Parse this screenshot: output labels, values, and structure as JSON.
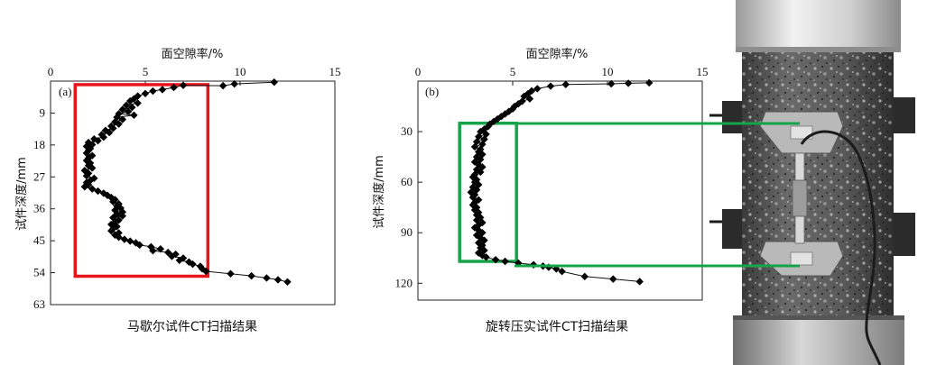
{
  "chart_data": [
    {
      "type": "line",
      "panel_label": "(a)",
      "xlabel": "面空隙率/%",
      "ylabel": "试件深度/mm",
      "xlim": [
        0,
        15
      ],
      "ylim": [
        63,
        0
      ],
      "x_ticks": [
        0,
        5,
        10,
        15
      ],
      "y_ticks": [
        9,
        18,
        27,
        36,
        45,
        54,
        63
      ],
      "x_axis_position": "top",
      "caption": "马歇尔试件CT扫描结果",
      "highlight": {
        "color": "#e8141b",
        "x_range": [
          1.3,
          8.3
        ],
        "y_range": [
          1.0,
          55.0
        ]
      },
      "series": [
        {
          "points": [
            [
              11.8,
              0.3
            ],
            [
              9.7,
              0.8
            ],
            [
              9.1,
              1.3
            ],
            [
              7.0,
              1.2
            ],
            [
              6.5,
              1.8
            ],
            [
              5.9,
              2.4
            ],
            [
              5.4,
              2.8
            ],
            [
              5.0,
              3.5
            ],
            [
              4.6,
              4.2
            ],
            [
              4.4,
              5.0
            ],
            [
              4.2,
              5.6
            ],
            [
              4.6,
              6.2
            ],
            [
              4.0,
              6.8
            ],
            [
              4.3,
              7.4
            ],
            [
              3.8,
              8.0
            ],
            [
              4.1,
              8.6
            ],
            [
              3.6,
              9.2
            ],
            [
              4.4,
              9.6
            ],
            [
              3.5,
              10.2
            ],
            [
              3.8,
              10.8
            ],
            [
              3.4,
              11.5
            ],
            [
              3.6,
              12.1
            ],
            [
              3.2,
              12.7
            ],
            [
              3.3,
              13.3
            ],
            [
              2.9,
              13.9
            ],
            [
              3.1,
              14.5
            ],
            [
              2.7,
              15.1
            ],
            [
              2.8,
              15.8
            ],
            [
              2.3,
              16.3
            ],
            [
              2.5,
              16.8
            ],
            [
              2.0,
              17.3
            ],
            [
              2.2,
              17.9
            ],
            [
              1.9,
              18.4
            ],
            [
              2.1,
              19.0
            ],
            [
              2.0,
              19.6
            ],
            [
              1.9,
              20.3
            ],
            [
              2.2,
              21.0
            ],
            [
              2.0,
              21.7
            ],
            [
              1.9,
              22.4
            ],
            [
              2.1,
              23.1
            ],
            [
              2.0,
              23.8
            ],
            [
              2.2,
              24.5
            ],
            [
              1.8,
              25.2
            ],
            [
              2.0,
              26.0
            ],
            [
              1.9,
              26.7
            ],
            [
              2.3,
              27.4
            ],
            [
              2.1,
              28.0
            ],
            [
              1.9,
              28.6
            ],
            [
              2.0,
              29.2
            ],
            [
              1.8,
              29.8
            ],
            [
              2.2,
              30.4
            ],
            [
              2.5,
              31.0
            ],
            [
              2.8,
              31.6
            ],
            [
              3.0,
              32.2
            ],
            [
              3.2,
              32.8
            ],
            [
              3.4,
              33.4
            ],
            [
              3.3,
              34.0
            ],
            [
              3.6,
              34.6
            ],
            [
              3.5,
              35.2
            ],
            [
              3.7,
              35.8
            ],
            [
              3.4,
              36.4
            ],
            [
              3.8,
              36.9
            ],
            [
              3.5,
              37.5
            ],
            [
              3.8,
              38.0
            ],
            [
              3.3,
              38.5
            ],
            [
              3.6,
              39.2
            ],
            [
              3.4,
              39.8
            ],
            [
              3.2,
              40.4
            ],
            [
              3.5,
              41.0
            ],
            [
              3.3,
              41.6
            ],
            [
              3.2,
              42.2
            ],
            [
              3.6,
              42.8
            ],
            [
              3.4,
              43.4
            ],
            [
              3.6,
              44.0
            ],
            [
              3.9,
              44.6
            ],
            [
              4.2,
              45.1
            ],
            [
              4.5,
              45.6
            ],
            [
              4.7,
              46.2
            ],
            [
              5.3,
              46.7
            ],
            [
              5.8,
              47.3
            ],
            [
              5.4,
              47.8
            ],
            [
              6.2,
              48.3
            ],
            [
              6.6,
              48.8
            ],
            [
              6.4,
              49.4
            ],
            [
              7.0,
              49.9
            ],
            [
              6.8,
              50.5
            ],
            [
              7.3,
              51.0
            ],
            [
              7.5,
              51.6
            ],
            [
              7.9,
              52.2
            ],
            [
              8.0,
              52.9
            ],
            [
              8.2,
              53.6
            ],
            [
              9.5,
              54.3
            ],
            [
              10.6,
              54.9
            ],
            [
              11.4,
              55.5
            ],
            [
              12.0,
              56.0
            ],
            [
              12.5,
              56.6
            ]
          ]
        }
      ]
    },
    {
      "type": "line",
      "panel_label": "(b)",
      "xlabel": "面空隙率/%",
      "ylabel": "试件深度/mm",
      "xlim": [
        0,
        15
      ],
      "ylim": [
        130,
        0
      ],
      "x_ticks": [
        0,
        5,
        10,
        15
      ],
      "y_ticks": [
        30,
        60,
        90,
        120
      ],
      "x_axis_position": "top",
      "caption": "旋转压实试件CT扫描结果",
      "highlight": {
        "color": "#15a44a",
        "x_range": [
          2.2,
          5.2
        ],
        "y_range": [
          25.0,
          107.0
        ]
      },
      "series": [
        {
          "points": [
            [
              12.2,
              1.0
            ],
            [
              11.1,
              1.3
            ],
            [
              10.2,
              1.6
            ],
            [
              7.8,
              2.0
            ],
            [
              7.0,
              3.0
            ],
            [
              6.3,
              4.5
            ],
            [
              6.0,
              5.8
            ],
            [
              5.8,
              7.5
            ],
            [
              5.6,
              9.0
            ],
            [
              5.9,
              10.5
            ],
            [
              5.5,
              12.0
            ],
            [
              5.3,
              13.5
            ],
            [
              5.1,
              15.0
            ],
            [
              5.0,
              16.5
            ],
            [
              4.8,
              18.0
            ],
            [
              4.6,
              19.5
            ],
            [
              4.4,
              21.0
            ],
            [
              4.2,
              22.5
            ],
            [
              4.0,
              24.0
            ],
            [
              3.8,
              25.5
            ],
            [
              3.7,
              27.0
            ],
            [
              3.5,
              28.5
            ],
            [
              3.3,
              30.0
            ],
            [
              3.6,
              31.5
            ],
            [
              3.2,
              33.0
            ],
            [
              3.5,
              34.5
            ],
            [
              3.1,
              36.0
            ],
            [
              3.4,
              37.5
            ],
            [
              3.0,
              39.0
            ],
            [
              3.3,
              40.5
            ],
            [
              3.2,
              42.0
            ],
            [
              3.4,
              43.5
            ],
            [
              3.1,
              45.0
            ],
            [
              3.3,
              46.5
            ],
            [
              3.0,
              48.0
            ],
            [
              3.2,
              49.5
            ],
            [
              3.4,
              51.0
            ],
            [
              3.1,
              52.5
            ],
            [
              3.3,
              54.0
            ],
            [
              3.0,
              55.5
            ],
            [
              2.9,
              57.0
            ],
            [
              3.1,
              58.5
            ],
            [
              3.0,
              60.0
            ],
            [
              3.2,
              61.5
            ],
            [
              2.9,
              63.0
            ],
            [
              3.1,
              64.5
            ],
            [
              2.8,
              66.0
            ],
            [
              3.0,
              67.5
            ],
            [
              2.9,
              69.0
            ],
            [
              3.2,
              70.5
            ],
            [
              3.0,
              72.0
            ],
            [
              2.9,
              73.5
            ],
            [
              3.1,
              75.0
            ],
            [
              3.0,
              76.5
            ],
            [
              3.2,
              78.0
            ],
            [
              3.1,
              79.5
            ],
            [
              3.3,
              81.0
            ],
            [
              3.1,
              82.5
            ],
            [
              3.4,
              84.0
            ],
            [
              3.2,
              85.5
            ],
            [
              3.0,
              87.0
            ],
            [
              3.2,
              88.5
            ],
            [
              3.4,
              90.0
            ],
            [
              3.1,
              91.5
            ],
            [
              3.3,
              93.0
            ],
            [
              3.5,
              94.5
            ],
            [
              3.2,
              96.0
            ],
            [
              3.4,
              97.5
            ],
            [
              3.3,
              99.0
            ],
            [
              3.5,
              100.5
            ],
            [
              3.2,
              102.0
            ],
            [
              3.4,
              103.5
            ],
            [
              3.6,
              104.5
            ],
            [
              4.1,
              106.0
            ],
            [
              4.6,
              107.0
            ],
            [
              5.3,
              108.0
            ],
            [
              6.1,
              109.0
            ],
            [
              6.6,
              109.8
            ],
            [
              6.9,
              110.5
            ],
            [
              7.3,
              111.5
            ],
            [
              7.6,
              113.0
            ],
            [
              8.8,
              116.0
            ],
            [
              10.3,
              117.5
            ],
            [
              11.7,
              119.0
            ]
          ]
        }
      ]
    }
  ],
  "photo": {
    "description_icon": "specimen-with-extensometer-photo",
    "connector_color": "#15a44a"
  }
}
